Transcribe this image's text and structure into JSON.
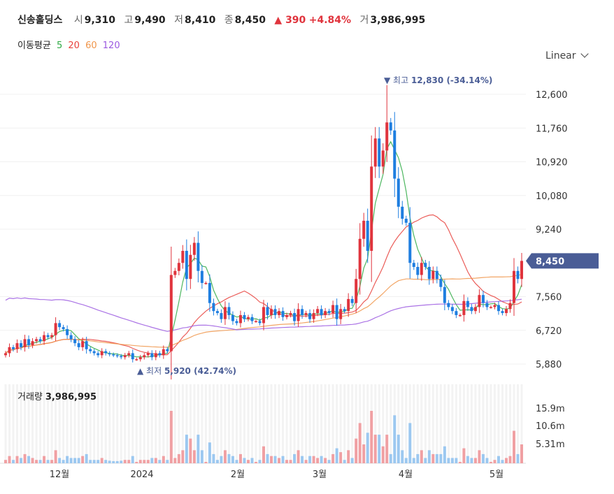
{
  "header": {
    "name": "신송홀딩스",
    "open_label": "시",
    "open": "9,310",
    "high_label": "고",
    "high": "9,490",
    "low_label": "저",
    "low": "8,410",
    "close_label": "종",
    "close": "8,450",
    "change": "▲ 390",
    "change_pct": "+4.84%",
    "volume_label": "거",
    "volume": "3,986,995"
  },
  "ma_legend": {
    "label": "이동평균",
    "items": [
      {
        "name": "5",
        "color": "#2eaa44"
      },
      {
        "name": "20",
        "color": "#e8413c"
      },
      {
        "name": "60",
        "color": "#f0954a"
      },
      {
        "name": "120",
        "color": "#9b59e0"
      }
    ]
  },
  "scale_selector": {
    "value": "Linear"
  },
  "price_tag": "8,450",
  "annotations": {
    "high": {
      "marker": "▼",
      "label": "최고",
      "value": "12,830",
      "pct": "(-34.14%)"
    },
    "low": {
      "marker": "▲",
      "label": "최저",
      "value": "5,920",
      "pct": "(42.74%)"
    }
  },
  "volume_panel": {
    "label": "거래량",
    "value": "3,986,995"
  },
  "colors": {
    "up": "#e0343d",
    "down": "#1e7ee0",
    "vol_up": "#f0a0a3",
    "vol_down": "#9cc8f0",
    "tag": "#4a5d96"
  },
  "chart_data": {
    "type": "candlestick",
    "price_axis": {
      "ticks": [
        "12,600",
        "11,760",
        "10,920",
        "10,080",
        "9,240",
        "8,450",
        "7,560",
        "6,720",
        "5,880"
      ],
      "ylim": [
        5600,
        13250
      ]
    },
    "volume_axis": {
      "ticks": [
        "15.9m",
        "10.6m",
        "5.31m"
      ]
    },
    "x_ticks": [
      "12월",
      "2024",
      "2월",
      "3월",
      "4월",
      "5월"
    ],
    "ohlc_daily_close": [
      6150,
      6300,
      6250,
      6400,
      6300,
      6500,
      6350,
      6450,
      6500,
      6450,
      6600,
      6550,
      6600,
      6900,
      6800,
      6750,
      6600,
      6500,
      6400,
      6300,
      6450,
      6250,
      6200,
      6150,
      6100,
      6200,
      6150,
      6120,
      6100,
      6080,
      6050,
      6100,
      6150,
      6000,
      6000,
      6050,
      6100,
      6150,
      6050,
      6150,
      6100,
      6250,
      6200,
      8100,
      8200,
      8400,
      8700,
      8000,
      8600,
      8900,
      8200,
      7900,
      7900,
      7400,
      7200,
      7150,
      7000,
      7300,
      7100,
      6950,
      6900,
      7100,
      7000,
      7050,
      6950,
      6950,
      6900,
      7300,
      7100,
      7250,
      7100,
      7200,
      7050,
      7100,
      7150,
      6950,
      7250,
      7100,
      7150,
      7000,
      7150,
      7250,
      7100,
      7200,
      7150,
      7350,
      7000,
      7250,
      7200,
      7500,
      7400,
      8000,
      9000,
      9450,
      8700,
      10800,
      11500,
      10800,
      11200,
      11900,
      11700,
      10500,
      9800,
      9500,
      9400,
      8400,
      8300,
      8100,
      8400,
      8300,
      8000,
      8200,
      8000,
      7800,
      7400,
      7300,
      7200,
      7100,
      7100,
      7450,
      7300,
      7200,
      7300,
      7600,
      7400,
      7300,
      7300,
      7350,
      7200,
      7150,
      7250,
      7400,
      8200,
      8000,
      8450
    ]
  }
}
